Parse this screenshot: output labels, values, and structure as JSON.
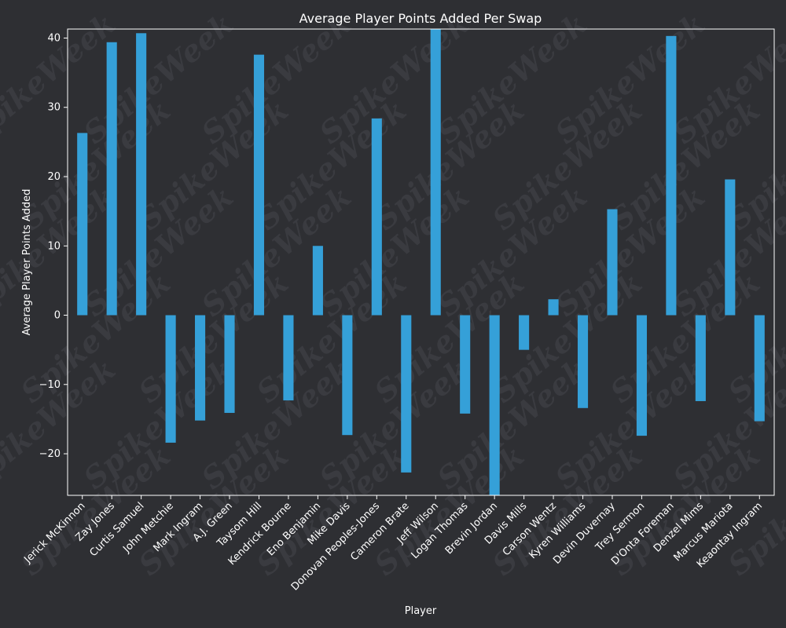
{
  "colors": {
    "background": "#2e2f33",
    "bar": "#35a0d8",
    "text": "#ffffff",
    "axis": "#ffffff",
    "watermark": "#3a3b40"
  },
  "watermark": "SpikeWeek",
  "chart_data": {
    "type": "bar",
    "title": "Average Player Points Added Per Swap",
    "xlabel": "Player",
    "ylabel": "Average Player Points Added",
    "ylim": [
      -26,
      41.3
    ],
    "yticks": [
      -20,
      -10,
      0,
      10,
      20,
      30,
      40
    ],
    "grid": false,
    "categories": [
      "Jerick McKinnon",
      "Zay Jones",
      "Curtis Samuel",
      "John Metchie",
      "Mark Ingram",
      "A.J. Green",
      "Taysom Hill",
      "Kendrick Bourne",
      "Eno Benjamin",
      "Mike Davis",
      "Donovan Peoples-Jones",
      "Cameron Brate",
      "Jeff Wilson",
      "Logan Thomas",
      "Brevin Jordan",
      "Davis Mills",
      "Carson Wentz",
      "Kyren Williams",
      "Devin Duvernay",
      "Trey Sermon",
      "D'Onta Foreman",
      "Denzel Mims",
      "Marcus Mariota",
      "Keaontay Ingram"
    ],
    "values": [
      26.3,
      39.4,
      40.7,
      -18.4,
      -15.2,
      -14.1,
      37.6,
      -12.3,
      10.0,
      -17.3,
      28.4,
      -22.7,
      41.3,
      -14.2,
      -26.0,
      -5.0,
      2.3,
      -13.4,
      15.3,
      -17.4,
      40.3,
      -12.4,
      19.6,
      -15.3
    ]
  }
}
